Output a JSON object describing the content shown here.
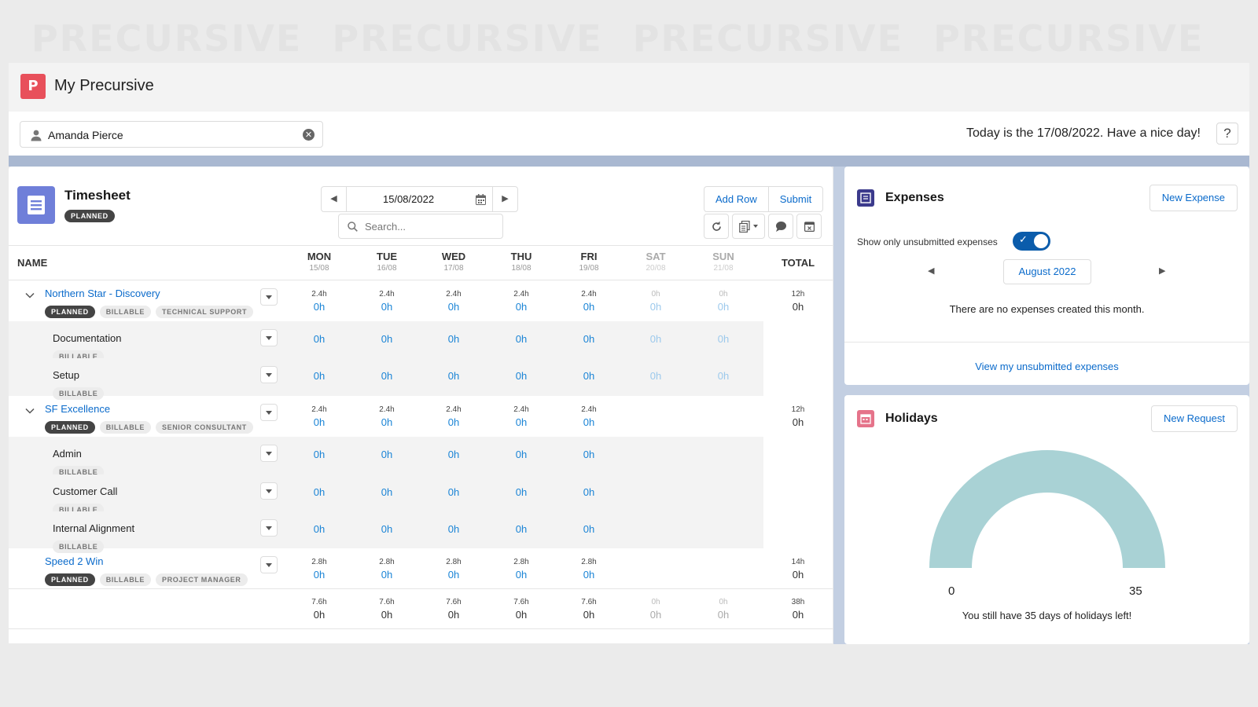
{
  "watermark": [
    "PRECURSIVE",
    "PRECURSIVE",
    "PRECURSIVE",
    "PRECURSIVE"
  ],
  "app": {
    "title": "My Precursive",
    "logo_letter": "P"
  },
  "user": {
    "name": "Amanda Pierce"
  },
  "today_text": "Today is the 17/08/2022. Have a nice day!",
  "help_label": "?",
  "timesheet": {
    "title": "Timesheet",
    "status": "PLANNED",
    "date": "15/08/2022",
    "search_placeholder": "Search...",
    "add_row_label": "Add Row",
    "submit_label": "Submit",
    "name_header": "NAME",
    "total_header": "TOTAL",
    "days": [
      {
        "day": "MON",
        "date": "15/08",
        "weekend": false
      },
      {
        "day": "TUE",
        "date": "16/08",
        "weekend": false
      },
      {
        "day": "WED",
        "date": "17/08",
        "weekend": false
      },
      {
        "day": "THU",
        "date": "18/08",
        "weekend": false
      },
      {
        "day": "FRI",
        "date": "19/08",
        "weekend": false
      },
      {
        "day": "SAT",
        "date": "20/08",
        "weekend": true
      },
      {
        "day": "SUN",
        "date": "21/08",
        "weekend": true
      }
    ],
    "rows": [
      {
        "type": "project",
        "name": "Northern Star - Discovery",
        "tags": [
          "PLANNED",
          "BILLABLE",
          "TECHNICAL SUPPORT"
        ],
        "expanded": true,
        "planned": [
          "2.4h",
          "2.4h",
          "2.4h",
          "2.4h",
          "2.4h",
          "0h",
          "0h"
        ],
        "values": [
          "0h",
          "0h",
          "0h",
          "0h",
          "0h",
          "0h",
          "0h"
        ],
        "total_planned": "12h",
        "total_value": "0h"
      },
      {
        "type": "task",
        "name": "Documentation",
        "tags": [
          "BILLABLE"
        ],
        "values": [
          "0h",
          "0h",
          "0h",
          "0h",
          "0h",
          "0h",
          "0h"
        ]
      },
      {
        "type": "task",
        "name": "Setup",
        "tags": [
          "BILLABLE"
        ],
        "values": [
          "0h",
          "0h",
          "0h",
          "0h",
          "0h",
          "0h",
          "0h"
        ]
      },
      {
        "type": "project",
        "name": "SF Excellence",
        "tags": [
          "PLANNED",
          "BILLABLE",
          "SENIOR CONSULTANT"
        ],
        "expanded": true,
        "planned": [
          "2.4h",
          "2.4h",
          "2.4h",
          "2.4h",
          "2.4h"
        ],
        "values": [
          "0h",
          "0h",
          "0h",
          "0h",
          "0h"
        ],
        "total_planned": "12h",
        "total_value": "0h"
      },
      {
        "type": "task",
        "name": "Admin",
        "tags": [
          "BILLABLE"
        ],
        "values": [
          "0h",
          "0h",
          "0h",
          "0h",
          "0h"
        ]
      },
      {
        "type": "task",
        "name": "Customer Call",
        "tags": [
          "BILLABLE"
        ],
        "values": [
          "0h",
          "0h",
          "0h",
          "0h",
          "0h"
        ]
      },
      {
        "type": "task",
        "name": "Internal Alignment",
        "tags": [
          "BILLABLE"
        ],
        "values": [
          "0h",
          "0h",
          "0h",
          "0h",
          "0h"
        ]
      },
      {
        "type": "project",
        "name": "Speed 2 Win",
        "tags": [
          "PLANNED",
          "BILLABLE",
          "PROJECT MANAGER"
        ],
        "expanded": false,
        "planned": [
          "2.8h",
          "2.8h",
          "2.8h",
          "2.8h",
          "2.8h"
        ],
        "values": [
          "0h",
          "0h",
          "0h",
          "0h",
          "0h"
        ],
        "total_planned": "14h",
        "total_value": "0h"
      }
    ],
    "footer": {
      "planned": [
        "7.6h",
        "7.6h",
        "7.6h",
        "7.6h",
        "7.6h",
        "0h",
        "0h"
      ],
      "values": [
        "0h",
        "0h",
        "0h",
        "0h",
        "0h",
        "0h",
        "0h"
      ],
      "total_planned": "38h",
      "total_value": "0h"
    }
  },
  "expenses": {
    "title": "Expenses",
    "new_label": "New Expense",
    "toggle_label": "Show only unsubmitted expenses",
    "toggle_on": true,
    "month": "August 2022",
    "empty_text": "There are no expenses created this month.",
    "link_text": "View my unsubmitted expenses"
  },
  "holidays": {
    "title": "Holidays",
    "new_label": "New Request",
    "gauge_min": "0",
    "gauge_max": "35",
    "remaining_days": 35,
    "gauge_color": "#a9d2d5",
    "message": "You still have 35 days of holidays left!"
  },
  "colors": {
    "accent": "#0b6bcb",
    "logo": "#e8505b",
    "timesheet_icon": "#6f7fd9",
    "expenses_icon": "#3b3a8c",
    "holidays_icon": "#e5738a"
  }
}
